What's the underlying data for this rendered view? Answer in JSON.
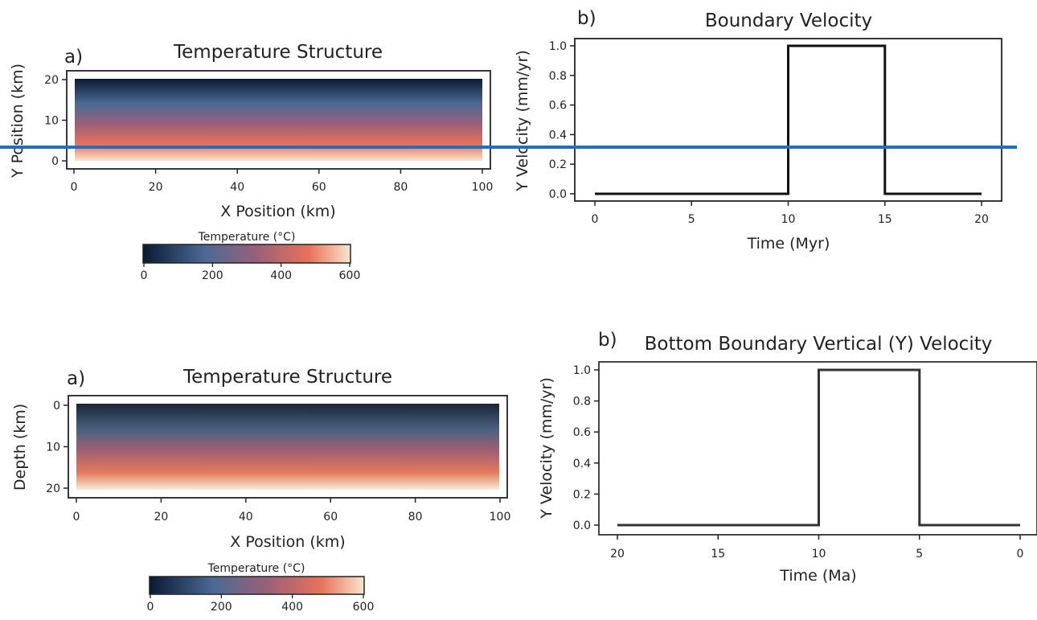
{
  "accent_colors": {
    "divider": "#1f6fc2",
    "axes": "#222222",
    "colormap_low": "#0a1a33",
    "colormap_mid_low": "#4a6a95",
    "colormap_mid": "#9a6079",
    "colormap_mid_high": "#e8725a",
    "colormap_high": "#f6e6cc"
  },
  "chart_data": [
    {
      "type": "heatmap",
      "panel_label": "a)",
      "title": "Temperature Structure",
      "xlabel": "X Position (km)",
      "ylabel": "Y Position (km)",
      "xlim": [
        0,
        100
      ],
      "ylim": [
        0,
        20
      ],
      "xticks": [
        "0",
        "20",
        "40",
        "60",
        "80",
        "100"
      ],
      "yticks": [
        "0",
        "10",
        "20"
      ],
      "field": "temperature increasing with depth, 600 at y=0 to 0 at y=20",
      "colorbar": {
        "label": "Temperature (°C)",
        "range": [
          0,
          600
        ],
        "ticks": [
          "0",
          "200",
          "400",
          "600"
        ]
      }
    },
    {
      "type": "line",
      "panel_label": "b)",
      "title": "Boundary Velocity",
      "xlabel": "Time (Myr)",
      "ylabel": "Y Velocity (mm/yr)",
      "xlim": [
        0,
        20
      ],
      "ylim": [
        0,
        1
      ],
      "xticks": [
        "0",
        "5",
        "10",
        "15",
        "20"
      ],
      "yticks": [
        "0.0",
        "0.2",
        "0.4",
        "0.6",
        "0.8",
        "1.0"
      ],
      "series": [
        {
          "x": [
            0,
            10,
            10,
            15,
            15,
            20
          ],
          "y": [
            0,
            0,
            1,
            1,
            0,
            0
          ]
        }
      ]
    },
    {
      "type": "heatmap",
      "panel_label": "a)",
      "title": "Temperature Structure",
      "xlabel": "X Position (km)",
      "ylabel": "Depth (km)",
      "xlim": [
        0,
        100
      ],
      "ylim": [
        20,
        0
      ],
      "xticks": [
        "0",
        "20",
        "40",
        "60",
        "80",
        "100"
      ],
      "yticks": [
        "0",
        "10",
        "20"
      ],
      "field": "temperature increasing with depth, 0 at depth 0 to 600 at depth 20",
      "colorbar": {
        "label": "Temperature (°C)",
        "range": [
          0,
          600
        ],
        "ticks": [
          "0",
          "200",
          "400",
          "600"
        ]
      }
    },
    {
      "type": "line",
      "panel_label": "b)",
      "title": "Bottom Boundary Vertical (Y) Velocity",
      "xlabel": "Time (Ma)",
      "ylabel": "Y Velocity (mm/yr)",
      "xlim": [
        20,
        0
      ],
      "ylim": [
        0,
        1
      ],
      "xticks": [
        "20",
        "15",
        "10",
        "5",
        "0"
      ],
      "yticks": [
        "0.0",
        "0.2",
        "0.4",
        "0.6",
        "0.8",
        "1.0"
      ],
      "series": [
        {
          "x": [
            20,
            10,
            10,
            5,
            5,
            0
          ],
          "y": [
            0,
            0,
            1,
            1,
            0,
            0
          ]
        }
      ]
    }
  ]
}
